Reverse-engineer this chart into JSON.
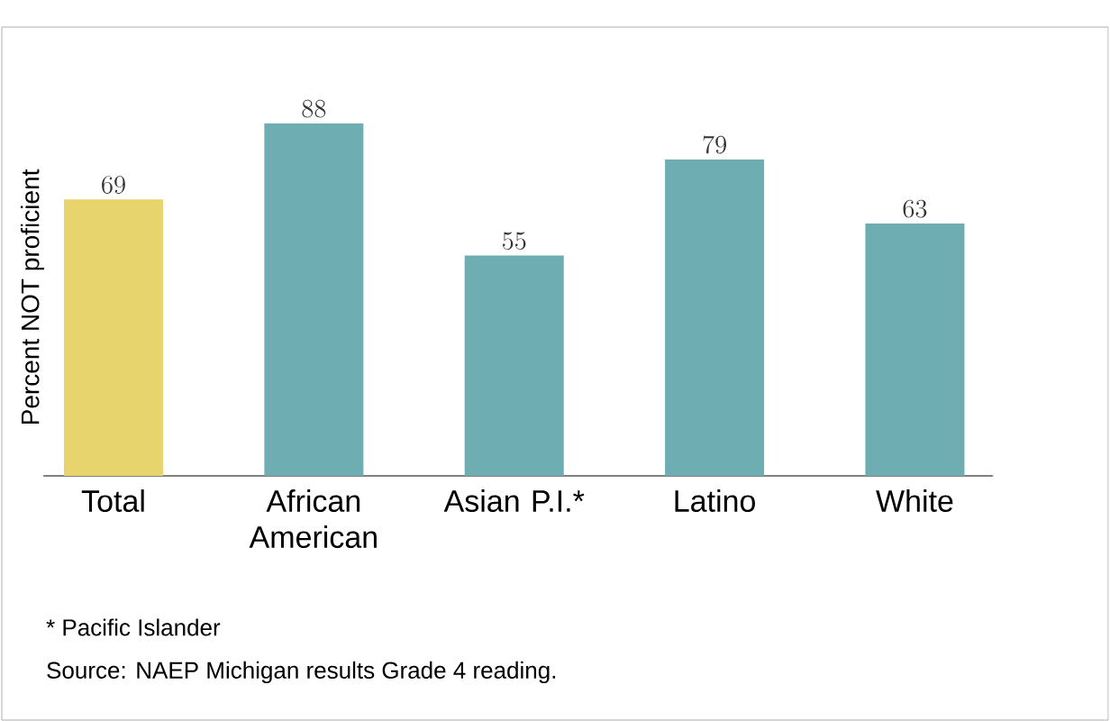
{
  "chart_data": {
    "type": "bar",
    "ylabel": "Percent NOT proficient",
    "categories": [
      "Total",
      "African American",
      "Asian P.I.*",
      "Latino",
      "White"
    ],
    "values": [
      69,
      88,
      55,
      79,
      63
    ],
    "colors": [
      "#e8d46c",
      "#6eaeb3",
      "#6eaeb3",
      "#6eaeb3",
      "#6eaeb3"
    ],
    "data_labels": true,
    "annotations": [
      "* Pacific Islander",
      "Source: NAEP Michigan results Grade 4 reading."
    ]
  }
}
